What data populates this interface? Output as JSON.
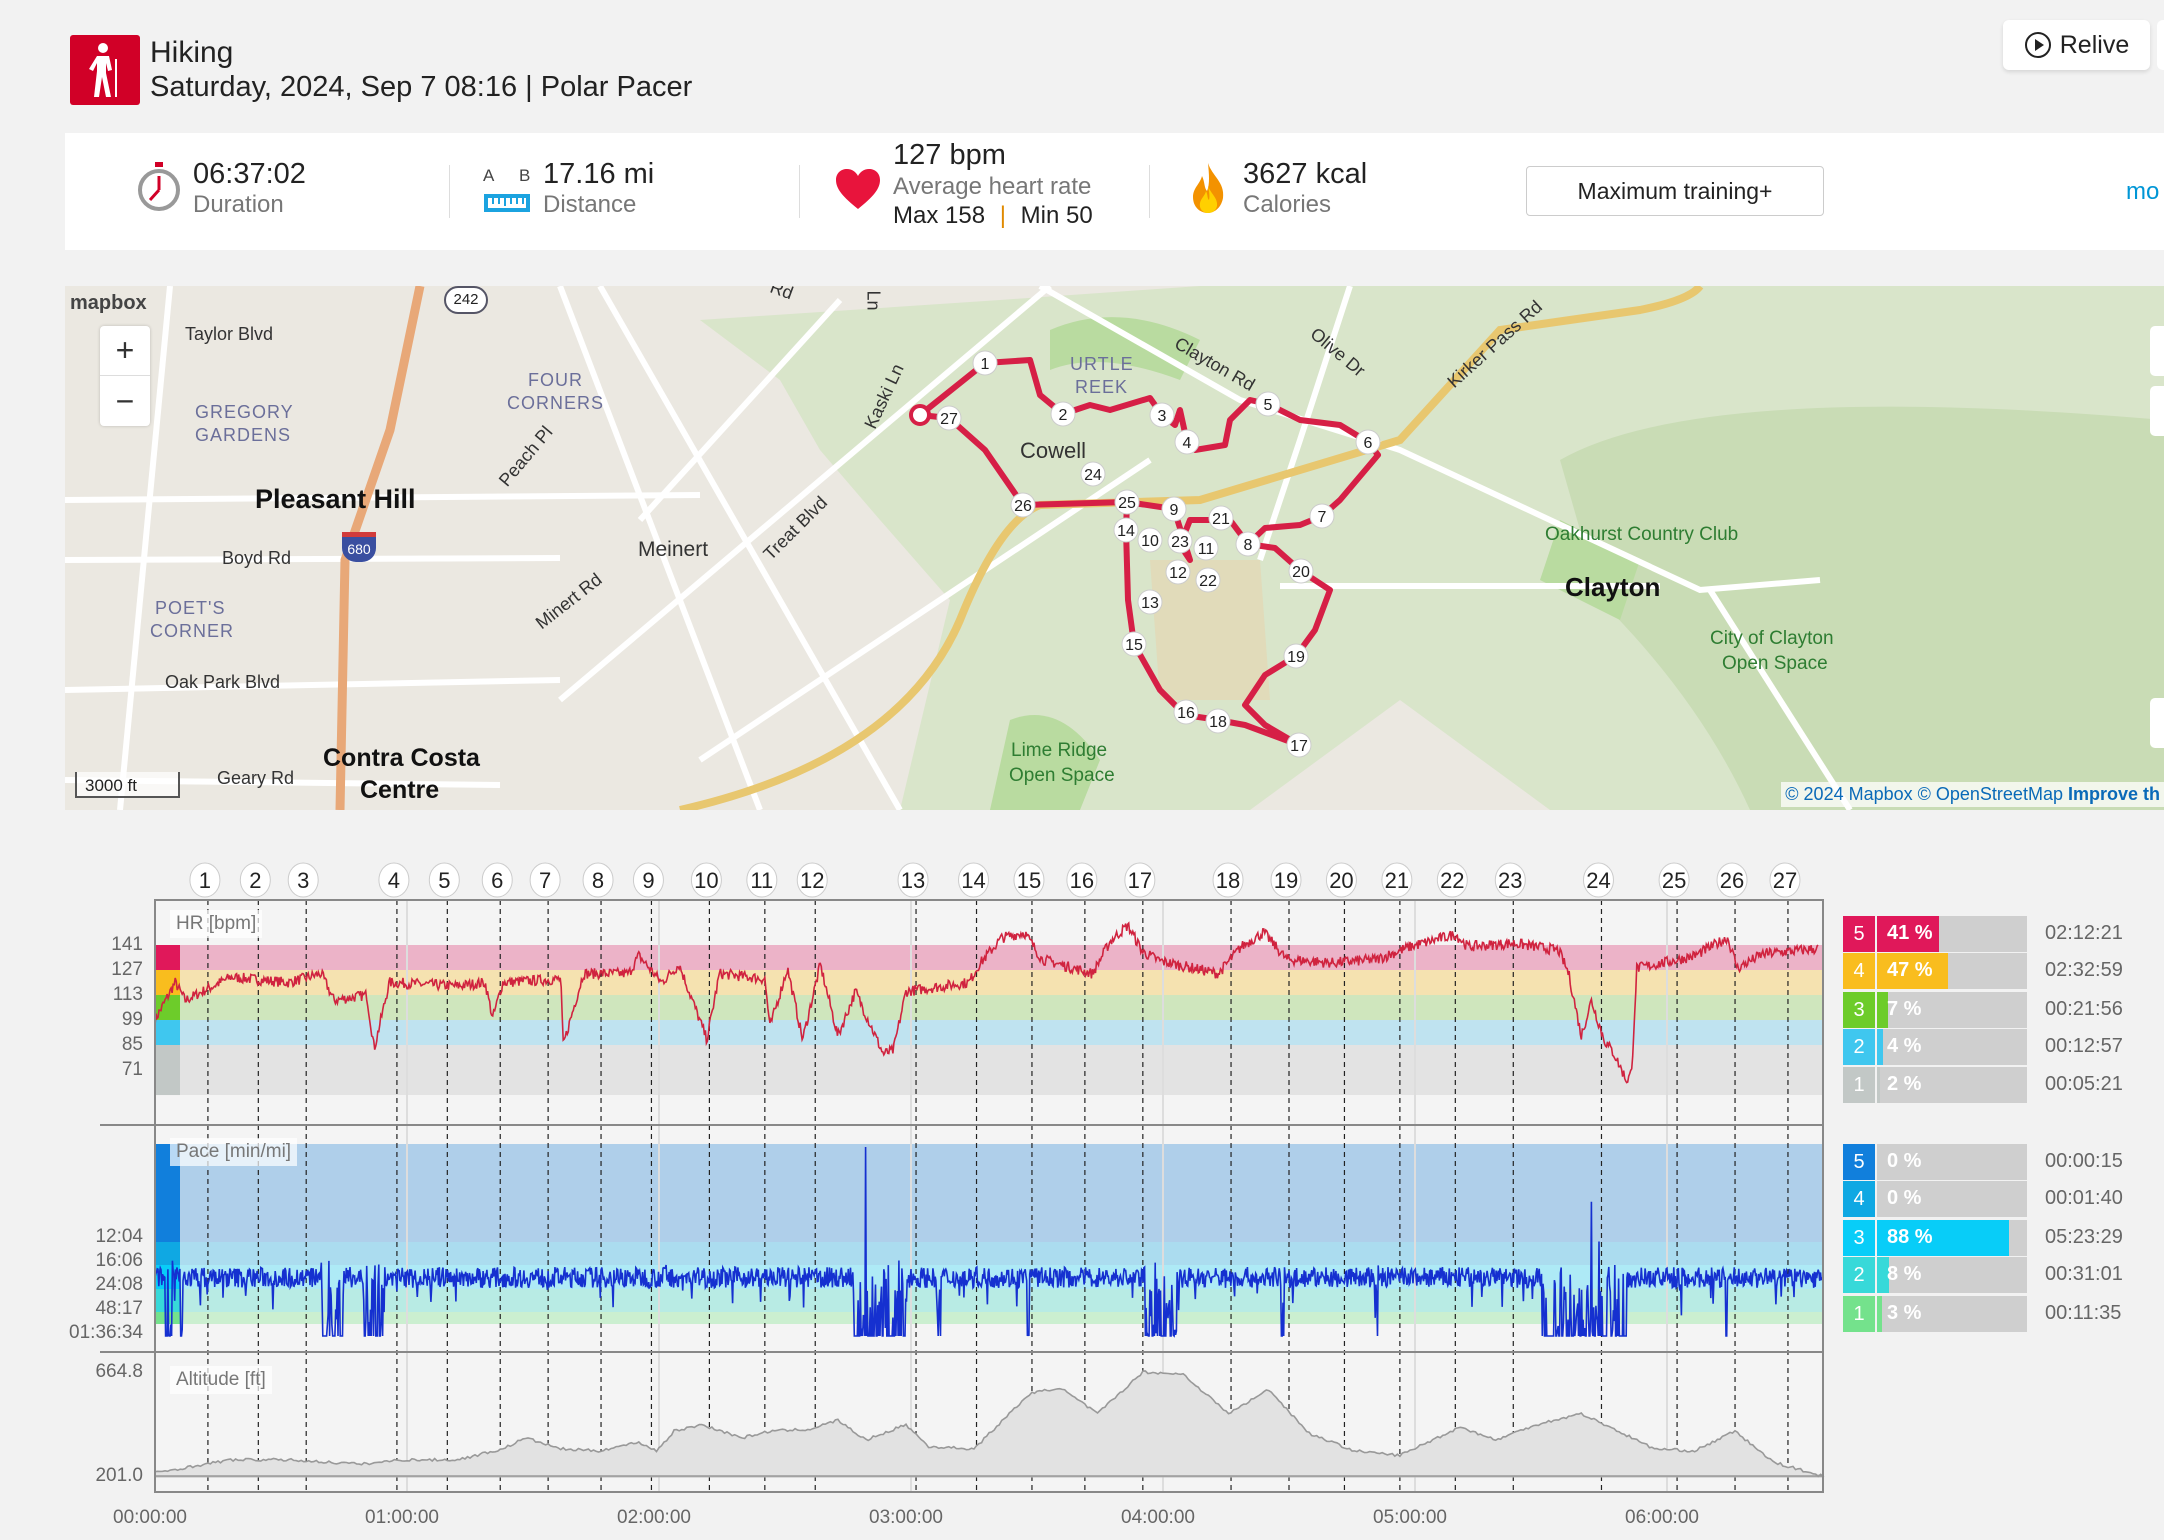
{
  "header": {
    "sport": "Hiking",
    "subtitle": "Saturday, 2024, Sep 7 08:16 | Polar Pacer",
    "relive_label": "Relive"
  },
  "stats": {
    "duration": {
      "value": "06:37:02",
      "label": "Duration"
    },
    "distance": {
      "value": "17.16 mi",
      "label": "Distance",
      "a": "A",
      "b": "B"
    },
    "heart_rate": {
      "value": "127 bpm",
      "label": "Average heart rate",
      "max": "Max 158",
      "min": "Min 50",
      "divider": "|"
    },
    "calories": {
      "value": "3627 kcal",
      "label": "Calories"
    },
    "training_button": "Maximum training+",
    "more_link": "mo"
  },
  "map": {
    "logo": "mapbox",
    "zoom_in": "+",
    "zoom_out": "−",
    "scale": "3000 ft",
    "attribution": "© 2024 Mapbox © OpenStreetMap",
    "improve": "Improve th",
    "shield_242": "242",
    "shield_680": "680",
    "labels": {
      "taylor": "Taylor Blvd",
      "gregory1": "GREGORY",
      "gregory2": "GARDENS",
      "four1": "FOUR",
      "four2": "CORNERS",
      "pleasant_hill": "Pleasant Hill",
      "peach": "Peach Pl",
      "boyd": "Boyd Rd",
      "poets1": "POET'S",
      "poets2": "CORNER",
      "meinert": "Meinert",
      "minert": "Minert Rd",
      "treat": "Treat Blvd",
      "oakpark": "Oak Park Blvd",
      "geary": "Geary Rd",
      "ccc1": "Contra Costa",
      "ccc2": "Centre",
      "kaski": "Kaski Ln",
      "cowell": "Cowell",
      "turtle1": "URTLE",
      "turtle2": "REEK",
      "clayton_rd": "Clayton Rd",
      "olive": "Olive Dr",
      "kirker": "Kirker Pass Rd",
      "oakhurst": "Oakhurst Country Club",
      "clayton": "Clayton",
      "cco1": "City of Clayton",
      "cco2": "Open Space",
      "lime1": "Lime Ridge",
      "lime2": "Open Space",
      "rd": "Rd",
      "ln": "Ln"
    }
  },
  "chart_data": {
    "type": "line",
    "x_unit": "hours",
    "xlim": [
      0,
      6.617
    ],
    "x_ticks": [
      "00:00:00",
      "01:00:00",
      "02:00:00",
      "03:00:00",
      "04:00:00",
      "05:00:00",
      "06:00:00"
    ],
    "laps": {
      "labels": [
        "1",
        "2",
        "3",
        "4",
        "5",
        "6",
        "7",
        "8",
        "9",
        "10",
        "11",
        "12",
        "13",
        "14",
        "15",
        "16",
        "17",
        "18",
        "19",
        "20",
        "21",
        "22",
        "23",
        "24",
        "25",
        "26",
        "27"
      ],
      "times": [
        0.21,
        0.41,
        0.6,
        0.96,
        1.16,
        1.37,
        1.56,
        1.77,
        1.97,
        2.2,
        2.42,
        2.62,
        3.02,
        3.26,
        3.48,
        3.69,
        3.92,
        4.27,
        4.5,
        4.72,
        4.94,
        5.16,
        5.39,
        5.74,
        6.04,
        6.27,
        6.48
      ]
    },
    "hr": {
      "title": "HR [bpm]",
      "y_ticks": [
        "141",
        "127",
        "113",
        "99",
        "85",
        "71"
      ],
      "zone_limits": [
        141,
        127,
        113,
        99,
        85,
        71
      ],
      "colors": {
        "line": "#d0233f",
        "z5": "#e0185a",
        "z4": "#f9bd1e",
        "z3": "#6dcc2a",
        "z2": "#3fc7ef",
        "z1": "#c2c8c6"
      },
      "series": [
        [
          0,
          99
        ],
        [
          0.08,
          120
        ],
        [
          0.12,
          110
        ],
        [
          0.3,
          123
        ],
        [
          0.53,
          120
        ],
        [
          0.66,
          125
        ],
        [
          0.71,
          110
        ],
        [
          0.84,
          113
        ],
        [
          0.87,
          83
        ],
        [
          0.93,
          120
        ],
        [
          1.2,
          118
        ],
        [
          1.31,
          120
        ],
        [
          1.34,
          100
        ],
        [
          1.38,
          120
        ],
        [
          1.61,
          122
        ],
        [
          1.62,
          85
        ],
        [
          1.7,
          125
        ],
        [
          1.88,
          125
        ],
        [
          1.92,
          135
        ],
        [
          2.01,
          120
        ],
        [
          2.08,
          130
        ],
        [
          2.19,
          88
        ],
        [
          2.24,
          125
        ],
        [
          2.42,
          122
        ],
        [
          2.44,
          95
        ],
        [
          2.51,
          128
        ],
        [
          2.57,
          88
        ],
        [
          2.64,
          130
        ],
        [
          2.71,
          90
        ],
        [
          2.78,
          115
        ],
        [
          2.89,
          80
        ],
        [
          2.93,
          82
        ],
        [
          2.98,
          115
        ],
        [
          3.23,
          120
        ],
        [
          3.27,
          130
        ],
        [
          3.36,
          145
        ],
        [
          3.45,
          148
        ],
        [
          3.52,
          133
        ],
        [
          3.72,
          125
        ],
        [
          3.79,
          143
        ],
        [
          3.86,
          152
        ],
        [
          3.92,
          137
        ],
        [
          3.99,
          132
        ],
        [
          4.22,
          125
        ],
        [
          4.31,
          140
        ],
        [
          4.4,
          148
        ],
        [
          4.49,
          133
        ],
        [
          4.67,
          131
        ],
        [
          4.85,
          133
        ],
        [
          4.98,
          140
        ],
        [
          5.16,
          147
        ],
        [
          5.21,
          140
        ],
        [
          5.39,
          142
        ],
        [
          5.57,
          138
        ],
        [
          5.61,
          125
        ],
        [
          5.66,
          90
        ],
        [
          5.7,
          110
        ],
        [
          5.75,
          88
        ],
        [
          5.79,
          80
        ],
        [
          5.84,
          65
        ],
        [
          5.86,
          70
        ],
        [
          5.88,
          128
        ],
        [
          6.02,
          132
        ],
        [
          6.11,
          135
        ],
        [
          6.24,
          145
        ],
        [
          6.28,
          128
        ],
        [
          6.38,
          136
        ],
        [
          6.6,
          139
        ]
      ],
      "zones": [
        {
          "zone": "5",
          "percent": 41,
          "label": "41 %",
          "time": "02:12:21"
        },
        {
          "zone": "4",
          "percent": 47,
          "label": "47 %",
          "time": "02:32:59"
        },
        {
          "zone": "3",
          "percent": 7,
          "label": "7 %",
          "time": "00:21:56"
        },
        {
          "zone": "2",
          "percent": 4,
          "label": "4 %",
          "time": "00:12:57"
        },
        {
          "zone": "1",
          "percent": 2,
          "label": "2 %",
          "time": "00:05:21"
        }
      ]
    },
    "pace": {
      "title": "Pace [min/mi]",
      "y_ticks": [
        "12:04",
        "16:06",
        "24:08",
        "48:17",
        "01:36:34"
      ],
      "speed_mph_ticks": [
        4.97,
        3.73,
        2.49,
        1.24,
        0.62
      ],
      "colors": {
        "line": "#1530d0",
        "z5": "#117fdc",
        "z4": "#0fa8e3",
        "z3": "#08cdf8",
        "z2": "#37d9d9",
        "z1": "#74e28c"
      },
      "base_speed_mph": 3.1,
      "stops": [
        [
          0.04,
          0.07
        ],
        [
          0.1,
          0.11
        ],
        [
          0.66,
          0.75
        ],
        [
          0.83,
          0.91
        ],
        [
          2.02,
          2.03
        ],
        [
          2.77,
          2.98
        ],
        [
          3.1,
          3.12
        ],
        [
          3.46,
          3.47
        ],
        [
          3.93,
          4.06
        ],
        [
          4.47,
          4.48
        ],
        [
          4.84,
          4.86
        ],
        [
          5.5,
          5.84
        ],
        [
          6.05,
          6.06
        ],
        [
          6.23,
          6.24
        ]
      ],
      "spikes": [
        [
          2.82,
          10.0
        ],
        [
          5.7,
          7.1
        ],
        [
          5.73,
          5.0
        ]
      ],
      "zones": [
        {
          "zone": "5",
          "percent": 0,
          "label": "0 %",
          "time": "00:00:15"
        },
        {
          "zone": "4",
          "percent": 0,
          "label": "0 %",
          "time": "00:01:40"
        },
        {
          "zone": "3",
          "percent": 88,
          "label": "88 %",
          "time": "05:23:29"
        },
        {
          "zone": "2",
          "percent": 8,
          "label": "8 %",
          "time": "00:31:01"
        },
        {
          "zone": "1",
          "percent": 3,
          "label": "3 %",
          "time": "00:11:35"
        }
      ]
    },
    "altitude": {
      "title": "Altitude [ft]",
      "y_ticks": [
        "664.8",
        "201.0"
      ],
      "ylim": [
        201.0,
        664.8
      ],
      "series": [
        [
          0,
          215
        ],
        [
          0.3,
          273
        ],
        [
          0.53,
          273
        ],
        [
          0.82,
          254
        ],
        [
          0.98,
          273
        ],
        [
          1.2,
          273
        ],
        [
          1.38,
          322
        ],
        [
          1.47,
          371
        ],
        [
          1.61,
          322
        ],
        [
          1.76,
          313
        ],
        [
          1.92,
          352
        ],
        [
          1.99,
          313
        ],
        [
          2.06,
          401
        ],
        [
          2.17,
          430
        ],
        [
          2.33,
          371
        ],
        [
          2.44,
          401
        ],
        [
          2.6,
          410
        ],
        [
          2.71,
          450
        ],
        [
          2.82,
          361
        ],
        [
          2.98,
          430
        ],
        [
          3.07,
          332
        ],
        [
          3.25,
          322
        ],
        [
          3.47,
          567
        ],
        [
          3.59,
          596
        ],
        [
          3.74,
          479
        ],
        [
          3.92,
          665
        ],
        [
          4.08,
          655
        ],
        [
          4.26,
          479
        ],
        [
          4.42,
          587
        ],
        [
          4.58,
          391
        ],
        [
          4.76,
          313
        ],
        [
          4.94,
          293
        ],
        [
          5.18,
          420
        ],
        [
          5.32,
          361
        ],
        [
          5.48,
          430
        ],
        [
          5.66,
          479
        ],
        [
          5.79,
          410
        ],
        [
          5.95,
          322
        ],
        [
          6.11,
          313
        ],
        [
          6.27,
          401
        ],
        [
          6.42,
          264
        ],
        [
          6.6,
          205
        ]
      ]
    }
  }
}
